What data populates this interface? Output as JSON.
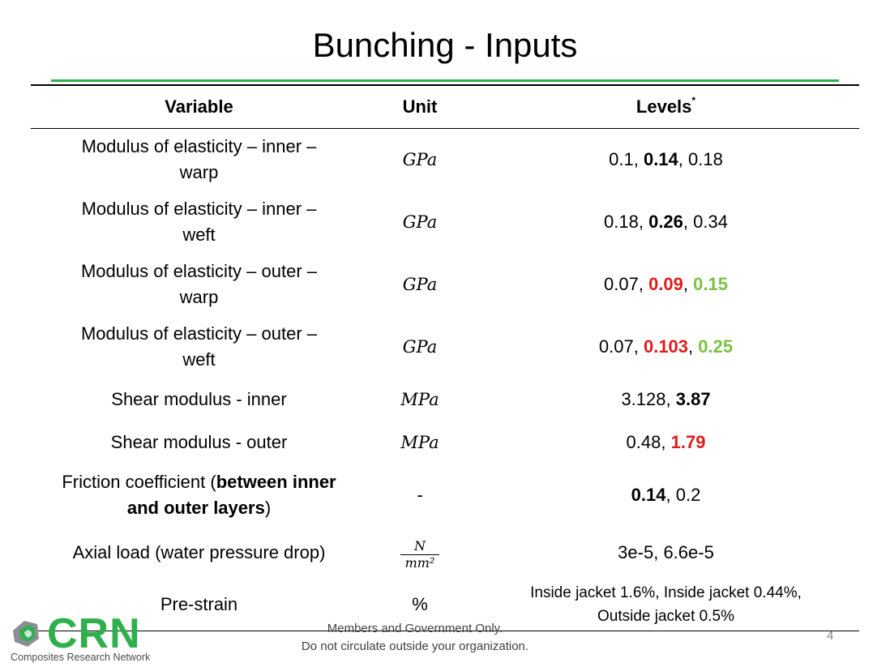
{
  "slide": {
    "title": "Bunching - Inputs",
    "page_number": "4",
    "footer_line1": "Members and Government Only.",
    "footer_line2": "Do not circulate outside your organization."
  },
  "logo": {
    "brand": "CRN",
    "tagline": "Composites Research Network"
  },
  "table": {
    "headers": {
      "variable": "Variable",
      "unit": "Unit",
      "levels": "Levels",
      "levels_marker": "*"
    },
    "rows": [
      {
        "variable_l1": "Modulus of elasticity – inner –",
        "variable_l2": "warp",
        "unit": "GPa",
        "levels": [
          "0.1",
          "0.14",
          "0.18"
        ]
      },
      {
        "variable_l1": "Modulus of elasticity – inner –",
        "variable_l2": "weft",
        "unit": "GPa",
        "levels": [
          "0.18",
          "0.26",
          "0.34"
        ]
      },
      {
        "variable_l1": "Modulus of elasticity – outer –",
        "variable_l2": "warp",
        "unit": "GPa",
        "levels": [
          "0.07",
          "0.09",
          "0.15"
        ]
      },
      {
        "variable_l1": "Modulus of elasticity – outer –",
        "variable_l2": "weft",
        "unit": "GPa",
        "levels": [
          "0.07",
          "0.103",
          "0.25"
        ]
      },
      {
        "variable": "Shear modulus - inner",
        "unit": "MPa",
        "levels": [
          "3.128",
          "3.87"
        ]
      },
      {
        "variable": "Shear modulus - outer",
        "unit": "MPa",
        "levels": [
          "0.48",
          "1.79"
        ]
      },
      {
        "variable_pre": "Friction coefficient (",
        "variable_bold1": "between inner",
        "variable_bold2": "and outer layers",
        "variable_post": ")",
        "unit": "-",
        "levels": [
          "0.14",
          "0.2"
        ]
      },
      {
        "variable": "Axial load (water pressure drop)",
        "unit_num": "N",
        "unit_den": "mm²",
        "levels": [
          "3e-5",
          "6.6e-5"
        ]
      },
      {
        "variable": "Pre-strain",
        "unit": "%",
        "levels_l1": "Inside jacket 1.6%, Inside jacket 0.44%,",
        "levels_l2": "Outside jacket 0.5%"
      }
    ],
    "colors": {
      "highlight_red": "#e11b1b",
      "highlight_green": "#7bc142",
      "rule_green": "#2fb04c"
    }
  }
}
